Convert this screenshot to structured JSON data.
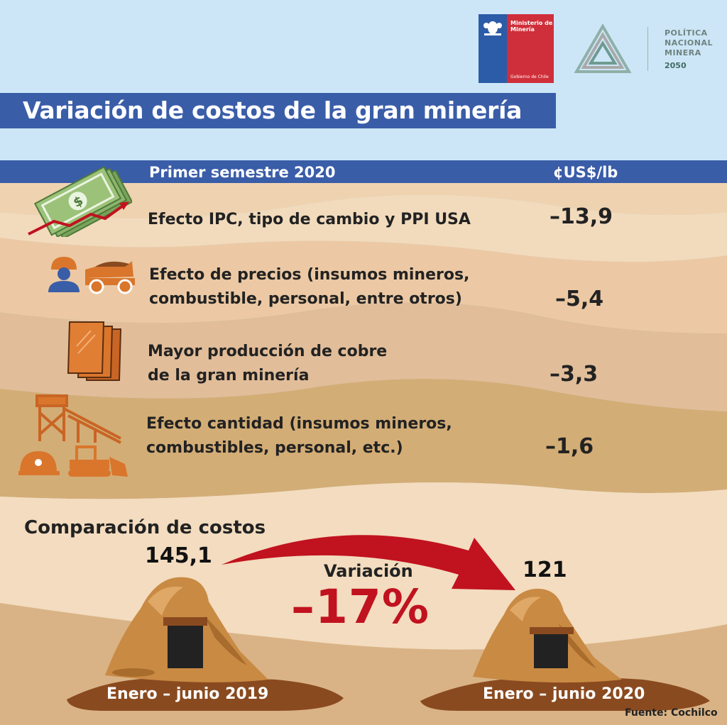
{
  "logos": {
    "gobierno": {
      "ministry": "Ministerio de Minería",
      "government": "Gobierno de Chile"
    },
    "politica": {
      "line1": "POLÍTICA",
      "line2": "NACIONAL",
      "line3": "MINERA",
      "year": "2050"
    }
  },
  "title": "Variación de costos de la gran minería",
  "table": {
    "header_label": "Primer semestre 2020",
    "header_unit": "¢US$/lb",
    "rows": [
      {
        "line1": "Efecto IPC, tipo de cambio y PPI USA",
        "line2": "",
        "value": "–13,9",
        "icon": "money-chart-icon"
      },
      {
        "line1": "Efecto de precios (insumos mineros,",
        "line2": "combustible, personal, entre otros)",
        "value": "–5,4",
        "icon": "worker-truck-icon"
      },
      {
        "line1": "Mayor producción de cobre",
        "line2": "de la gran minería",
        "value": "–3,3",
        "icon": "copper-plates-icon"
      },
      {
        "line1": "Efecto cantidad (insumos mineros,",
        "line2": "combustibles, personal, etc.)",
        "value": "–1,6",
        "icon": "mine-equipment-icon"
      }
    ]
  },
  "comparison": {
    "title": "Comparación de costos",
    "before": {
      "value": "145,1",
      "period": "Enero – junio 2019"
    },
    "after": {
      "value": "121",
      "period": "Enero – junio 2020"
    },
    "variation_label": "Variación",
    "variation_value": "–17%"
  },
  "source": "Fuente: Cochilco",
  "colors": {
    "blue": "#3a5da8",
    "red": "#c1121f",
    "orange": "#d9762c",
    "sky": "#cde6f7"
  }
}
